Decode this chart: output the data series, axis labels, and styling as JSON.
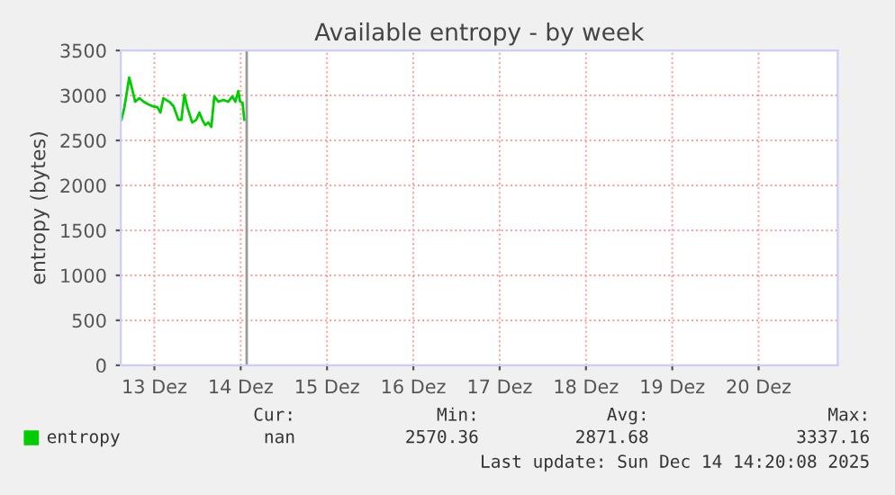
{
  "chart_data": {
    "type": "line",
    "title": "Available entropy - by week",
    "ylabel": "entropy (bytes)",
    "x": [
      "2025-12-13T02:50",
      "2025-12-13T03:40",
      "2025-12-13T05:00",
      "2025-12-13T05:50",
      "2025-12-13T06:40",
      "2025-12-13T07:50",
      "2025-12-13T09:00",
      "2025-12-13T10:20",
      "2025-12-13T11:30",
      "2025-12-13T12:50",
      "2025-12-13T13:40",
      "2025-12-13T14:30",
      "2025-12-13T16:10",
      "2025-12-13T17:20",
      "2025-12-13T18:40",
      "2025-12-13T19:30",
      "2025-12-13T20:20",
      "2025-12-13T21:10",
      "2025-12-13T22:30",
      "2025-12-13T23:40",
      "2025-12-14T00:30",
      "2025-12-14T01:20",
      "2025-12-14T02:10",
      "2025-12-14T03:00",
      "2025-12-14T03:50",
      "2025-12-14T04:40",
      "2025-12-14T05:50",
      "2025-12-14T07:10",
      "2025-12-14T08:30",
      "2025-12-14T09:40",
      "2025-12-14T10:30",
      "2025-12-14T11:20",
      "2025-12-14T11:50",
      "2025-12-14T12:30",
      "2025-12-14T13:00"
    ],
    "series": [
      {
        "name": "entropy",
        "color": "#00cc00",
        "values": [
          2730,
          2870,
          3200,
          3070,
          2930,
          2970,
          2930,
          2900,
          2880,
          2870,
          2810,
          2970,
          2930,
          2880,
          2730,
          2730,
          3010,
          2870,
          2700,
          2730,
          2810,
          2730,
          2670,
          2700,
          2650,
          2990,
          2930,
          2950,
          2930,
          2990,
          2930,
          3050,
          2930,
          2920,
          2730
        ]
      }
    ],
    "xlim": [
      "2025-12-13T02:40",
      "2025-12-21T10:00"
    ],
    "xticks": [
      {
        "value": "2025-12-13T12:00",
        "label": "13 Dez"
      },
      {
        "value": "2025-12-14T12:00",
        "label": "14 Dez"
      },
      {
        "value": "2025-12-15T12:00",
        "label": "15 Dez"
      },
      {
        "value": "2025-12-16T12:00",
        "label": "16 Dez"
      },
      {
        "value": "2025-12-17T12:00",
        "label": "17 Dez"
      },
      {
        "value": "2025-12-18T12:00",
        "label": "18 Dez"
      },
      {
        "value": "2025-12-19T12:00",
        "label": "19 Dez"
      },
      {
        "value": "2025-12-20T12:00",
        "label": "20 Dez"
      }
    ],
    "ylim": [
      0,
      3500
    ],
    "yticks": [
      0,
      500,
      1000,
      1500,
      2000,
      2500,
      3000,
      3500
    ],
    "ref_lines": [
      {
        "axis": "x",
        "value": "2025-12-14T13:40",
        "color": "#999999"
      }
    ],
    "grid": true,
    "legend": "bottom left",
    "line_style": "solid",
    "marker": "none",
    "annotations": [
      "Cur:",
      "Min:",
      "Avg:",
      "Max:",
      "nan",
      "2570.36",
      "2871.68",
      "3337.16",
      "Last update: Sun Dec 14 14:20:08 2025"
    ]
  }
}
